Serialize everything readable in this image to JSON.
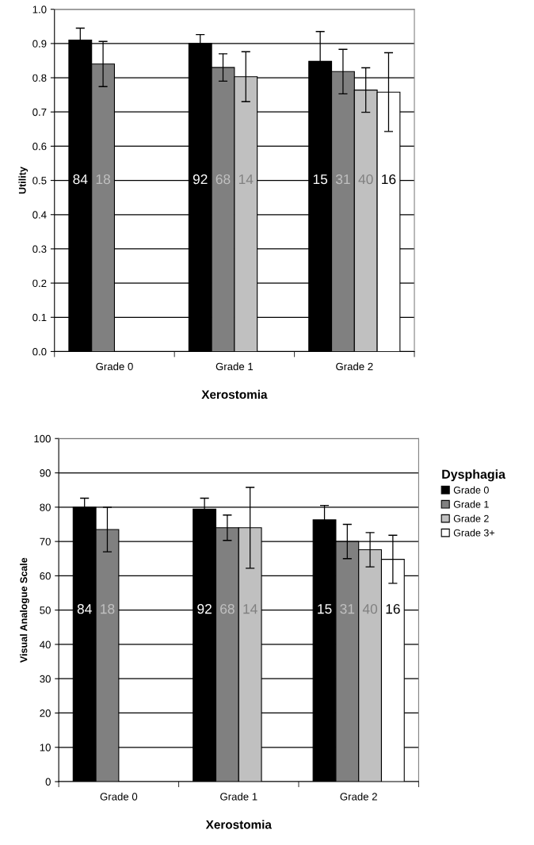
{
  "chart_data": [
    {
      "type": "bar",
      "xlabel": "Xerostomia",
      "ylabel": "Utility",
      "categories": [
        "Grade 0",
        "Grade 1",
        "Grade 2"
      ],
      "ylim": [
        0,
        1
      ],
      "yticks": [
        {
          "value": 0,
          "label": "0.0"
        },
        {
          "value": 0.1,
          "label": "0.1"
        },
        {
          "value": 0.2,
          "label": "0.2"
        },
        {
          "value": 0.3,
          "label": "0.3"
        },
        {
          "value": 0.4,
          "label": "0.4"
        },
        {
          "value": 0.5,
          "label": "0.5"
        },
        {
          "value": 0.6,
          "label": "0.6"
        },
        {
          "value": 0.7,
          "label": "0.7"
        },
        {
          "value": 0.8,
          "label": "0.8"
        },
        {
          "value": 0.9,
          "label": "0.9"
        },
        {
          "value": 1,
          "label": "1.0"
        }
      ],
      "grid": "y",
      "legend": "right",
      "legend_title": "Dysphagia",
      "series": [
        {
          "name": "Grade 0",
          "color": "#000000",
          "values": [
            0.91,
            0.9,
            0.848
          ],
          "errors": [
            0.035,
            0.026,
            0.087
          ]
        },
        {
          "name": "Grade 1",
          "color": "#808080",
          "values": [
            0.84,
            0.83,
            0.818
          ],
          "errors": [
            0.066,
            0.04,
            0.065
          ]
        },
        {
          "name": "Grade 2",
          "color": "#c0c0c0",
          "values": [
            null,
            0.803,
            0.764
          ],
          "errors": [
            null,
            0.073,
            0.065
          ]
        },
        {
          "name": "Grade 3+",
          "color": "#ffffff",
          "values": [
            null,
            null,
            0.758
          ],
          "errors": [
            null,
            null,
            0.115
          ]
        }
      ],
      "annotations": [
        {
          "text": "84",
          "x": "Grade 0",
          "y": 0.5
        },
        {
          "text": "18",
          "x": "Grade 0",
          "y": 0.5
        },
        {
          "text": "92",
          "x": "Grade 1",
          "y": 0.5
        },
        {
          "text": "68",
          "x": "Grade 1",
          "y": 0.5
        },
        {
          "text": "14",
          "x": "Grade 1",
          "y": 0.5
        },
        {
          "text": "15",
          "x": "Grade 2",
          "y": 0.5
        },
        {
          "text": "31",
          "x": "Grade 2",
          "y": 0.5
        },
        {
          "text": "40",
          "x": "Grade 2",
          "y": 0.5
        },
        {
          "text": "16",
          "x": "Grade 2",
          "y": 0.5
        }
      ]
    },
    {
      "type": "bar",
      "xlabel": "Xerostomia",
      "ylabel": "Visual Analogue Scale",
      "categories": [
        "Grade 0",
        "Grade 1",
        "Grade 2"
      ],
      "ylim": [
        0,
        100
      ],
      "yticks": [
        0,
        10,
        20,
        30,
        40,
        50,
        60,
        70,
        80,
        90,
        100
      ],
      "grid": "y",
      "series": [
        {
          "color": "#000000",
          "values": [
            80,
            79.4,
            76.3
          ],
          "errors": [
            2.6,
            3.2,
            4.2
          ]
        },
        {
          "color": "#808080",
          "values": [
            73.5,
            74,
            70
          ],
          "errors": [
            6.5,
            3.7,
            5
          ]
        },
        {
          "color": "#c0c0c0",
          "values": [
            null,
            74,
            67.6
          ],
          "errors": [
            null,
            11.8,
            5
          ]
        },
        {
          "color": "#ffffff",
          "values": [
            null,
            null,
            64.8
          ],
          "errors": [
            null,
            null,
            7
          ]
        }
      ],
      "annotations": [
        {
          "text": "84",
          "x": "Grade 0",
          "y": 50
        },
        {
          "text": "18",
          "x": "Grade 0",
          "y": 50
        },
        {
          "text": "92",
          "x": "Grade 1",
          "y": 50
        },
        {
          "text": "68",
          "x": "Grade 1",
          "y": 50
        },
        {
          "text": "14",
          "x": "Grade 1",
          "y": 50
        },
        {
          "text": "15",
          "x": "Grade 2",
          "y": 50
        },
        {
          "text": "31",
          "x": "Grade 2",
          "y": 50
        },
        {
          "text": "40",
          "x": "Grade 2",
          "y": 50
        },
        {
          "text": "16",
          "x": "Grade 2",
          "y": 50
        }
      ]
    }
  ]
}
